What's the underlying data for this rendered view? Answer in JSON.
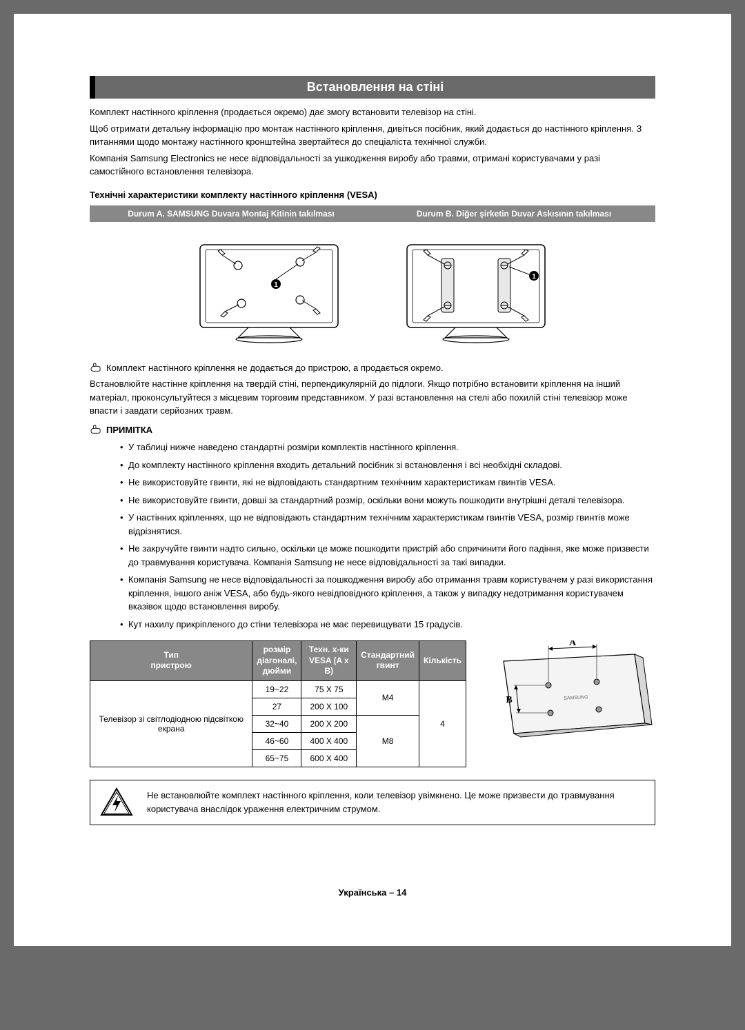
{
  "title": "Встановлення на стіні",
  "intro": [
    "Комплект настінного кріплення (продається окремо) дає змогу встановити телевізор на стіні.",
    "Щоб отримати детальну інформацію про монтаж настінного кріплення, дивіться посібник, який додається до настінного кріплення. З питаннями щодо монтажу настінного кронштейна звертайтеся до спеціаліста технічної служби.",
    "Компанія Samsung Electronics не несе відповідальності за ушкодження виробу або травми, отримані користувачами у разі самостійного встановлення телевізора."
  ],
  "sub_heading": "Технічні характеристики комплекту настінного кріплення (VESA)",
  "case_a": "Durum A. SAMSUNG Duvara Montaj Kitinin takılması",
  "case_b": "Durum B. Diğer şirketin Duvar Askısının takılması",
  "note1": "Комплект настінного кріплення не додається до пристрою, а продається окремо.",
  "after_note": "Встановлюйте настінне кріплення на твердій стіні, перпендикулярній до підлоги. Якщо потрібно встановити кріплення на інший матеріал, проконсультуйтеся з місцевим торговим представником. У разі встановлення на стелі або похилій стіні телевізор може впасти і завдати серйозних травм.",
  "note_label": "ПРИМІТКА",
  "bullets": [
    "У таблиці нижче наведено стандартні розміри комплектів настінного кріплення.",
    "До комплекту настінного кріплення входить детальний посібник зі встановлення і всі необхідні складові.",
    "Не використовуйте гвинти, які не відповідають стандартним технічним характеристикам гвинтів VESA.",
    "Не використовуйте гвинти, довші за стандартний розмір, оскільки вони можуть пошкодити внутрішні деталі телевізора.",
    "У настінних кріпленнях, що не відповідають стандартним технічним характеристикам гвинтів VESA, розмір гвинтів може відрізнятися.",
    "Не закручуйте гвинти надто сильно, оскільки це може пошкодити пристрій або спричинити його падіння, яке може призвести до травмування користувача. Компанія Samsung не несе відповідальності за такі випадки.",
    "Компанія Samsung не несе відповідальності за пошкодження виробу або отримання травм користувачем у разі використання кріплення, іншого аніж VESA, або будь-якого невідповідного кріплення, а також у випадку недотримання користувачем вказівок щодо встановлення виробу.",
    "Кут нахилу прикріпленого до стіни телевізора не має перевищувати 15 градусів."
  ],
  "table": {
    "headers": {
      "type": "Тип\nпристрою",
      "size": "розмір\nдіагоналі,\nдюйми",
      "vesa": "Техн. х-ки\nVESA (A x B)",
      "screw": "Стандартний\nгвинт",
      "qty": "Кількість"
    },
    "device_type": "Телевізор зі світлодіодною підсвіткою екрана",
    "rows": [
      {
        "size": "19~22",
        "vesa": "75 X 75"
      },
      {
        "size": "27",
        "vesa": "200 X 100"
      },
      {
        "size": "32~40",
        "vesa": "200 X 200"
      },
      {
        "size": "46~60",
        "vesa": "400 X 400"
      },
      {
        "size": "65~75",
        "vesa": "600 X 400"
      }
    ],
    "screw_m4": "M4",
    "screw_m8": "M8",
    "qty": "4",
    "dim_a": "A",
    "dim_b": "B"
  },
  "warning": "Не встановлюйте комплект настінного кріплення, коли телевізор увімкнено. Це може призвести до травмування користувача внаслідок ураження електричним струмом.",
  "footer": "Українська – 14",
  "colors": {
    "header_bg": "#888888",
    "title_bg": "#6a6a6a"
  }
}
